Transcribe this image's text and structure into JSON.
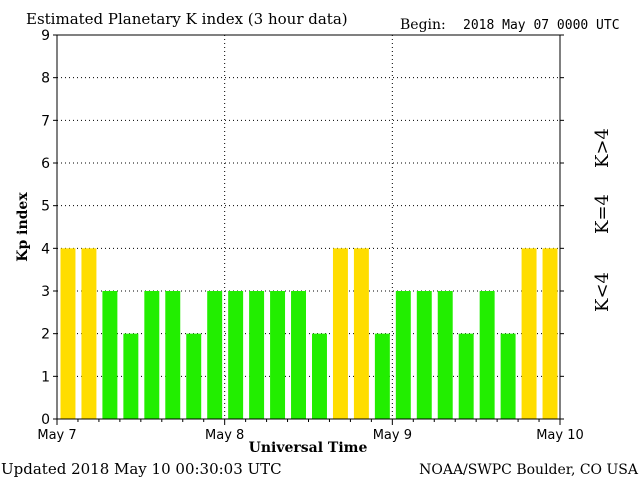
{
  "header": {
    "title": "Estimated Planetary K index (3 hour data)",
    "begin_label": "Begin:",
    "begin_value": "2018 May 07 0000 UTC"
  },
  "footer": {
    "updated": "Updated 2018 May 10 00:30:03 UTC",
    "source": "NOAA/SWPC Boulder, CO USA"
  },
  "legend": {
    "high": "K>4",
    "mid": "K=4",
    "low": "K<4"
  },
  "colors": {
    "low": "#22ee00",
    "mid": "#ffdd00",
    "high": "#ee2200",
    "axis": "#000000",
    "grid": "#000000"
  },
  "chart_data": {
    "type": "bar",
    "title": "Estimated Planetary K index (3 hour data)",
    "xlabel": "Universal Time",
    "ylabel": "Kp index",
    "ylim": [
      0,
      9
    ],
    "yticks": [
      0,
      1,
      2,
      3,
      4,
      5,
      6,
      7,
      8,
      9
    ],
    "xticks": [
      "May 7",
      "May 8",
      "May 9",
      "May 10"
    ],
    "grid": true,
    "bar_interval_hours": 3,
    "values": [
      4,
      4,
      3,
      2,
      3,
      3,
      2,
      3,
      3,
      3,
      3,
      3,
      2,
      4,
      4,
      2,
      3,
      3,
      3,
      2,
      3,
      2,
      4,
      4
    ]
  }
}
